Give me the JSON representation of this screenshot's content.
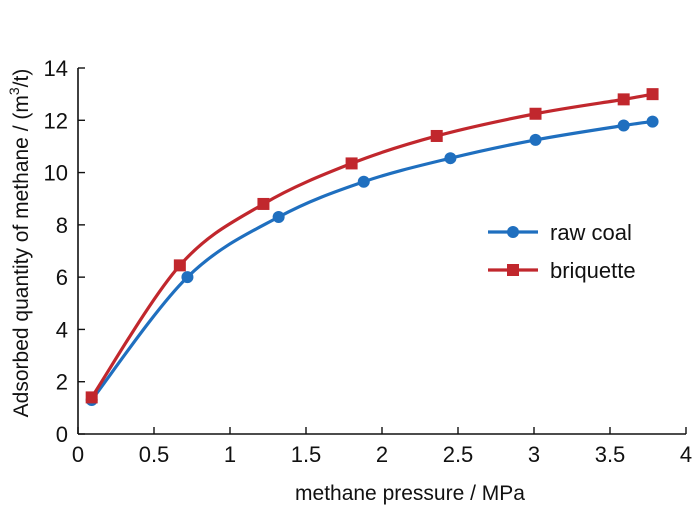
{
  "chart_data": {
    "type": "line",
    "title": "",
    "xlabel": "methane pressure / MPa",
    "ylabel": {
      "main": "Adsorbed quantity of methane  / (m",
      "superscript": "3",
      "suffix": "/t)"
    },
    "xlim": [
      0,
      4
    ],
    "ylim": [
      0,
      14
    ],
    "xticks": [
      0,
      0.5,
      1,
      1.5,
      2,
      2.5,
      3,
      3.5,
      4
    ],
    "xtick_labels": [
      "0",
      "0.5",
      "1",
      "1.5",
      "2",
      "2.5",
      "3",
      "3.5",
      "4"
    ],
    "yticks": [
      0,
      2,
      4,
      6,
      8,
      10,
      12,
      14
    ],
    "ytick_labels": [
      "0",
      "2",
      "4",
      "6",
      "8",
      "10",
      "12",
      "14"
    ],
    "grid": false,
    "legend_position": "center-right",
    "series": [
      {
        "name": "raw coal",
        "color": "#1f6fbf",
        "marker": "circle",
        "x": [
          0.09,
          0.72,
          1.32,
          1.88,
          2.45,
          3.01,
          3.59,
          3.78
        ],
        "y": [
          1.3,
          6.0,
          8.3,
          9.65,
          10.55,
          11.25,
          11.8,
          11.95
        ]
      },
      {
        "name": "briquette",
        "color": "#c1272d",
        "marker": "square",
        "x": [
          0.09,
          0.67,
          1.22,
          1.8,
          2.36,
          3.01,
          3.59,
          3.78
        ],
        "y": [
          1.4,
          6.45,
          8.8,
          10.35,
          11.4,
          12.25,
          12.8,
          13.0
        ]
      }
    ]
  }
}
